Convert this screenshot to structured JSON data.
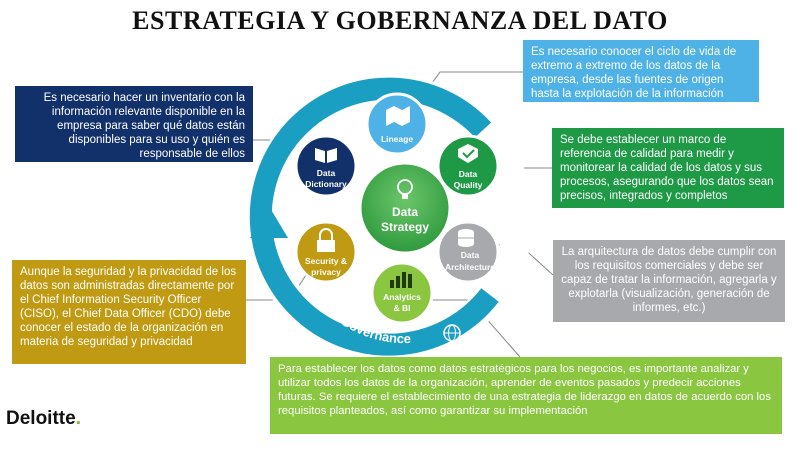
{
  "title": "ESTRATEGIA Y GOBERNANZA DEL DATO",
  "center": {
    "line1": "Data",
    "line2": "Strategy"
  },
  "ring_label": "Data Governance",
  "nodes": {
    "lineage": "Lineage",
    "quality": {
      "line1": "Data",
      "line2": "Quality"
    },
    "architecture": {
      "line1": "Data",
      "line2": "Architecture"
    },
    "analytics": {
      "line1": "Analytics",
      "line2": "& BI"
    },
    "security": {
      "line1": "Security &",
      "line2": "privacy"
    },
    "dictionary": {
      "line1": "Data",
      "line2": "Dictionary"
    }
  },
  "boxes": {
    "inventory": "Es necesario hacer un inventario con la información relevante disponible en la empresa para saber qué datos están disponibles para su uso y quién es responsable de ellos",
    "lifecycle": "Es necesario conocer el ciclo de vida de extremo a extremo de los datos de la empresa, desde las fuentes de origen hasta la explotación de la información",
    "quality": "Se debe establecer un marco de referencia de calidad para medir y monitorear la calidad de los datos y sus procesos, asegurando que los datos sean precisos, integrados y completos",
    "architecture": "La arquitectura de datos debe cumplir con los requisitos comerciales y debe ser capaz de tratar la información, agregarla y explotarla (visualización, generación de informes, etc.)",
    "security": "Aunque la seguridad y la privacidad de los datos son administradas directamente por el Chief Information Security Officer (CISO), el Chief Data Officer (CDO) debe conocer el estado de la organización en materia de seguridad y privacidad",
    "strategy": "Para establecer los datos como datos estratégicos para los negocios, es importante analizar y utilizar todos los datos de la organización, aprender de eventos pasados y predecir acciones futuras. Se requiere el establecimiento de una estrategia de liderazgo en datos de acuerdo con los requisitos planteados, así como garantizar su implementación"
  },
  "logo": {
    "name": "Deloitte",
    "dot": "."
  },
  "colors": {
    "ring": "#1a9ec1",
    "lineage": "#4fb2e6",
    "quality": "#1e9a46",
    "architecture": "#a8a9ad",
    "analytics": "#8ac640",
    "security": "#c09a12",
    "dictionary": "#12306a",
    "center": "#5cb85c"
  },
  "icons": [
    "map-icon",
    "shield-check-icon",
    "database-icon",
    "bar-chart-icon",
    "padlock-icon",
    "book-icon",
    "lightbulb-icon",
    "globe-icon"
  ]
}
